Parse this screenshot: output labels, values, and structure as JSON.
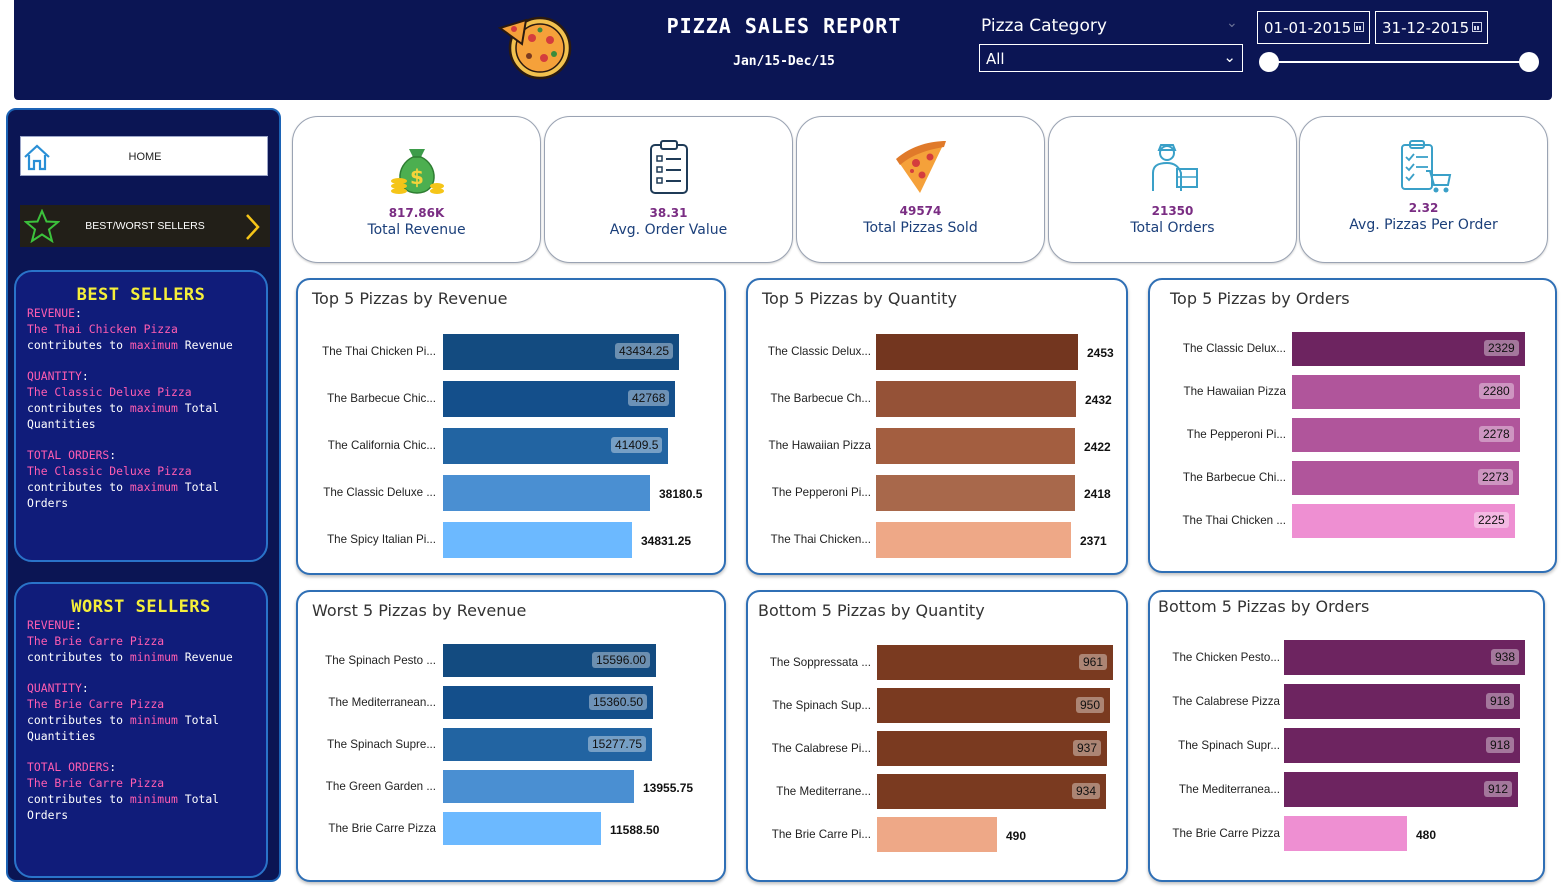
{
  "header": {
    "title": "PIZZA SALES REPORT",
    "subtitle": "Jan/15-Dec/15",
    "filter_label": "Pizza Category",
    "filter_value": "All",
    "date_start": "01-01-2015",
    "date_end": "31-12-2015"
  },
  "sidebar": {
    "home_label": "HOME",
    "best_worst_label": "BEST/WORST SELLERS"
  },
  "best_sellers": {
    "title": "BEST SELLERS",
    "revenue_key": "REVENUE",
    "revenue_pizza": "The Thai Chicken Pizza",
    "revenue_text": "contributes to maximum Revenue",
    "quantity_key": "QUANTITY",
    "quantity_pizza": "The Classic Deluxe Pizza",
    "quantity_text_1": "contributes to maximum Total",
    "quantity_text_2": "Quantities",
    "orders_key": "TOTAL ORDERS",
    "orders_pizza": "The Classic Deluxe Pizza",
    "orders_text_1": "contributes to maximum Total",
    "orders_text_2": "Orders"
  },
  "worst_sellers": {
    "title": "WORST SELLERS",
    "revenue_key": "REVENUE",
    "revenue_pizza": "The Brie Carre Pizza",
    "revenue_text": "contributes to minimum Revenue",
    "quantity_key": "QUANTITY",
    "quantity_pizza": "The Brie Carre Pizza",
    "quantity_text_1": "contributes to minimum Total",
    "quantity_text_2": "Quantities",
    "orders_key": "TOTAL ORDERS",
    "orders_pizza": "The Brie Carre Pizza",
    "orders_text_1": "contributes to minimum Total",
    "orders_text_2": "Orders"
  },
  "kpis": [
    {
      "value": "817.86K",
      "label": "Total Revenue",
      "icon": "money-bag-icon"
    },
    {
      "value": "38.31",
      "label": "Avg. Order Value",
      "icon": "clipboard-icon"
    },
    {
      "value": "49574",
      "label": "Total Pizzas Sold",
      "icon": "pizza-slice-icon"
    },
    {
      "value": "21350",
      "label": "Total Orders",
      "icon": "delivery-person-icon"
    },
    {
      "value": "2.32",
      "label": "Avg. Pizzas Per Order",
      "icon": "checklist-cart-icon"
    }
  ],
  "colors": {
    "navy": "#0b1554",
    "revenue_bars": [
      "#134b80",
      "#144f8b",
      "#2264a2",
      "#4a8fd2",
      "#6cb9ff"
    ],
    "quantity_top_bars": [
      "#73361f",
      "#955237",
      "#a35e40",
      "#a8684b",
      "#eea887"
    ],
    "quantity_bottom_bars": [
      "#7a3a20",
      "#7a3a20",
      "#7a3a20",
      "#7a3a20",
      "#eea887"
    ],
    "orders_top_bars": [
      "#6d2460",
      "#b0559b",
      "#b0559b",
      "#b0559b",
      "#ee8fd2"
    ],
    "orders_bottom_bars": [
      "#6d2460",
      "#6d2460",
      "#6d2460",
      "#6d2460",
      "#ee8fd2"
    ]
  },
  "chart_data": [
    {
      "type": "bar",
      "title": "Top 5 Pizzas by Revenue",
      "categories": [
        "The Thai Chicken Pi...",
        "The Barbecue Chic...",
        "The California Chic...",
        "The Classic Deluxe ...",
        "The Spicy Italian Pi..."
      ],
      "values": [
        43434.25,
        42768,
        41409.5,
        38180.5,
        34831.25
      ],
      "labels": [
        "43434.25",
        "42768",
        "41409.5",
        "38180.5",
        "34831.25"
      ]
    },
    {
      "type": "bar",
      "title": "Top 5 Pizzas by Quantity",
      "categories": [
        "The Classic Delux...",
        "The Barbecue Ch...",
        "The Hawaiian Pizza",
        "The Pepperoni Pi...",
        "The Thai Chicken..."
      ],
      "values": [
        2453,
        2432,
        2422,
        2418,
        2371
      ],
      "labels": [
        "2453",
        "2432",
        "2422",
        "2418",
        "2371"
      ]
    },
    {
      "type": "bar",
      "title": "Top 5 Pizzas by Orders",
      "categories": [
        "The Classic Delux...",
        "The Hawaiian Pizza",
        "The Pepperoni Pi...",
        "The Barbecue Chi...",
        "The Thai Chicken ..."
      ],
      "values": [
        2329,
        2280,
        2278,
        2273,
        2225
      ],
      "labels": [
        "2329",
        "2280",
        "2278",
        "2273",
        "2225"
      ]
    },
    {
      "type": "bar",
      "title": "Worst 5 Pizzas by Revenue",
      "categories": [
        "The Spinach Pesto ...",
        "The Mediterranean...",
        "The Spinach Supre...",
        "The Green Garden ...",
        "The Brie Carre Pizza"
      ],
      "values": [
        15596.0,
        15360.5,
        15277.75,
        13955.75,
        11588.5
      ],
      "labels": [
        "15596.00",
        "15360.50",
        "15277.75",
        "13955.75",
        "11588.50"
      ]
    },
    {
      "type": "bar",
      "title": "Bottom 5 Pizzas by Quantity",
      "categories": [
        "The Soppressata ...",
        "The Spinach Sup...",
        "The Calabrese Pi...",
        "The Mediterrane...",
        "The Brie Carre Pi..."
      ],
      "values": [
        961,
        950,
        937,
        934,
        490
      ],
      "labels": [
        "961",
        "950",
        "937",
        "934",
        "490"
      ]
    },
    {
      "type": "bar",
      "title": "Bottom 5 Pizzas by Orders",
      "categories": [
        "The Chicken Pesto...",
        "The Calabrese Pizza",
        "The Spinach Supr...",
        "The Mediterranea...",
        "The Brie Carre Pizza"
      ],
      "values": [
        938,
        918,
        918,
        912,
        480
      ],
      "labels": [
        "938",
        "918",
        "918",
        "912",
        "480"
      ]
    }
  ]
}
